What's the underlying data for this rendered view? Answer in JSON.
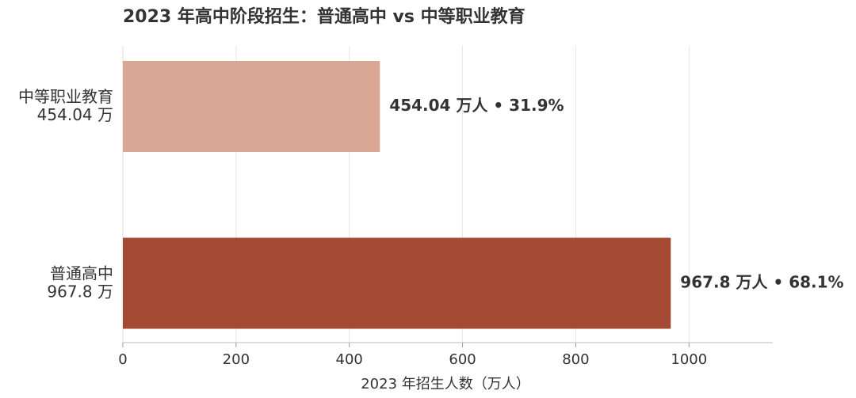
{
  "chart_data": {
    "type": "barh",
    "title": "2023 年高中阶段招生：普通高中 vs 中等职业教育",
    "x_label": "2023 年招生人数（万人）",
    "categories": [
      "中等职业教育",
      "普通高中"
    ],
    "category_sublabels": [
      "454.04 万",
      "967.8 万"
    ],
    "values": [
      454.04,
      967.8
    ],
    "value_labels": [
      "454.04 万人 • 31.9%",
      "967.8 万人 • 68.1%"
    ],
    "colors": [
      "#d9a793",
      "#a44a32"
    ],
    "xlim": [
      0,
      1148
    ],
    "xticks": [
      0,
      200,
      400,
      600,
      800,
      1000
    ],
    "grid": true
  }
}
